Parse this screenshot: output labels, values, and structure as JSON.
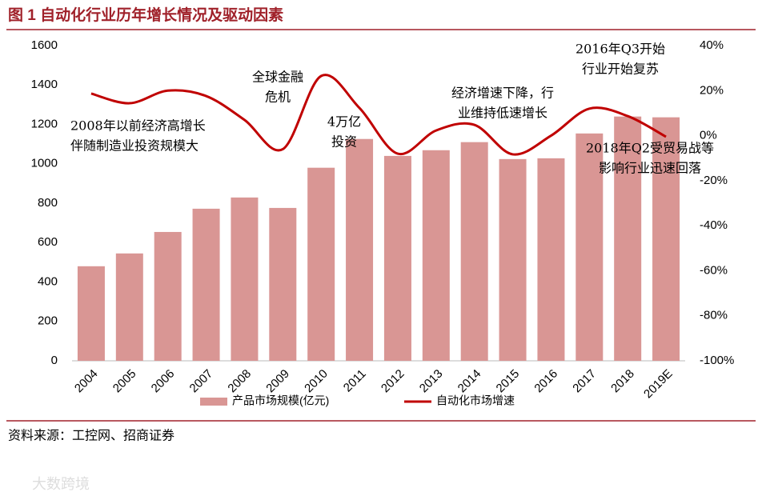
{
  "chart_data": {
    "type": "bar+line",
    "title": "图 1 自动化行业历年增长情况及驱动因素",
    "categories": [
      "2004",
      "2005",
      "2006",
      "2007",
      "2008",
      "2009",
      "2010",
      "2011",
      "2012",
      "2013",
      "2014",
      "2015",
      "2016",
      "2017",
      "2018",
      "2019E"
    ],
    "series": [
      {
        "name": "产品市场规模(亿元)",
        "type": "bar",
        "color": "#d99694",
        "values": [
          480,
          545,
          654,
          772,
          829,
          776,
          980,
          1126,
          1040,
          1069,
          1110,
          1024,
          1028,
          1154,
          1240,
          1236
        ]
      },
      {
        "name": "自动化市场增速",
        "type": "line",
        "axis": "y2",
        "color": "#c00000",
        "values": [
          18.7,
          14.4,
          20,
          17.6,
          7,
          -6,
          26.5,
          12.3,
          -8,
          2.3,
          4.8,
          -8.3,
          0,
          12,
          8.7,
          -0.5
        ]
      }
    ],
    "ylim": [
      0,
      1600
    ],
    "yticks": [
      0,
      200,
      400,
      600,
      800,
      1000,
      1200,
      1400,
      1600
    ],
    "y2lim": [
      -100,
      40
    ],
    "y2ticks": [
      {
        "value": -100,
        "label": "-100%"
      },
      {
        "value": -80,
        "label": "-80%"
      },
      {
        "value": -60,
        "label": "-60%"
      },
      {
        "value": -40,
        "label": "-40%"
      },
      {
        "value": -20,
        "label": "-20%"
      },
      {
        "value": 0,
        "label": "0%"
      },
      {
        "value": 20,
        "label": "20%"
      },
      {
        "value": 40,
        "label": "40%"
      }
    ],
    "annotations": [
      [
        "2008年以前经济高增长",
        "伴随制造业投资规模大"
      ],
      [
        "全球金融",
        "危机"
      ],
      [
        "4万亿",
        "投资"
      ],
      [
        "经济增速下降，行",
        "业维持低速增长"
      ],
      [
        "2016年Q3开始",
        "行业开始复苏"
      ],
      [
        "2018年Q2受贸易战等",
        "影响行业迅速回落"
      ]
    ],
    "legend": "bottom"
  },
  "source": "资料来源：工控网、招商证券",
  "watermark": "大数跨境"
}
